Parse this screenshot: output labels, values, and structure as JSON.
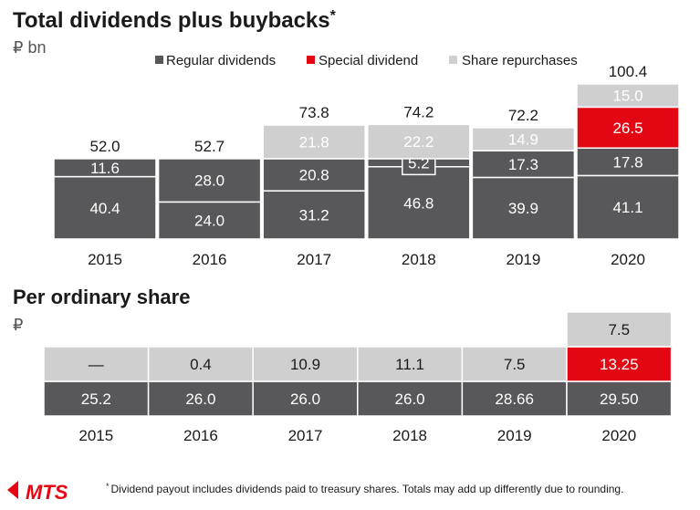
{
  "colors": {
    "regular": "#58585a",
    "special": "#e30613",
    "repurchase": "#cfcfcf",
    "regular_text": "#ffffff",
    "special_text": "#ffffff",
    "repurchase_text": "#ffffff",
    "per_share_light_text": "#1a1a1a",
    "brand": "#e30613"
  },
  "title": "Total dividends plus buybacks",
  "title_mark": "*",
  "unit": "₽ bn",
  "legend": {
    "regular": "Regular dividends",
    "special": "Special dividend",
    "repurchase": "Share repurchases"
  },
  "chart_data": [
    {
      "type": "bar",
      "title": "Total dividends plus buybacks*",
      "unit": "₽ bn",
      "categories": [
        "2015",
        "2016",
        "2017",
        "2018",
        "2019",
        "2020"
      ],
      "totals": [
        "52.0",
        "52.7",
        "73.8",
        "74.2",
        "72.2",
        "100.4"
      ],
      "segments": [
        [
          {
            "series": "regular",
            "value": 40.4,
            "label": "40.4"
          },
          {
            "series": "regular",
            "value": 11.6,
            "label": "11.6"
          }
        ],
        [
          {
            "series": "regular",
            "value": 24.0,
            "label": "24.0"
          },
          {
            "series": "regular",
            "value": 28.0,
            "label": "28.0"
          }
        ],
        [
          {
            "series": "regular",
            "value": 31.2,
            "label": "31.2"
          },
          {
            "series": "regular",
            "value": 20.8,
            "label": "20.8"
          },
          {
            "series": "repurchase",
            "value": 21.8,
            "label": "21.8"
          }
        ],
        [
          {
            "series": "regular",
            "value": 46.8,
            "label": "46.8"
          },
          {
            "series": "regular",
            "value": 5.2,
            "label": "5.2",
            "callout": true
          },
          {
            "series": "repurchase",
            "value": 22.2,
            "label": "22.2"
          }
        ],
        [
          {
            "series": "regular",
            "value": 39.9,
            "label": "39.9"
          },
          {
            "series": "regular",
            "value": 17.3,
            "label": "17.3"
          },
          {
            "series": "repurchase",
            "value": 14.9,
            "label": "14.9"
          }
        ],
        [
          {
            "series": "regular",
            "value": 41.1,
            "label": "41.1"
          },
          {
            "series": "regular",
            "value": 17.8,
            "label": "17.8"
          },
          {
            "series": "special",
            "value": 26.5,
            "label": "26.5"
          },
          {
            "series": "repurchase",
            "value": 15.0,
            "label": "15.0"
          }
        ]
      ],
      "ylim": [
        0,
        100.4
      ],
      "legend_position": "top-right"
    },
    {
      "type": "table",
      "title": "Per ordinary share",
      "unit": "₽",
      "categories": [
        "2015",
        "2016",
        "2017",
        "2018",
        "2019",
        "2020"
      ],
      "rows": [
        {
          "series": "regular",
          "values": [
            "25.2",
            "26.0",
            "26.0",
            "26.0",
            "28.66",
            "29.50"
          ]
        },
        {
          "series": "second",
          "values": [
            "—",
            "0.4",
            "10.9",
            "11.1",
            "7.5",
            "13.25"
          ],
          "highlight_index": 5
        },
        {
          "series": "repurchase",
          "values": [
            "",
            "",
            "",
            "",
            "",
            "7.5"
          ]
        }
      ]
    }
  ],
  "per_share": {
    "title": "Per ordinary share",
    "unit": "₽"
  },
  "footnote": {
    "mark": "*",
    "text": "Dividend payout includes dividends paid to treasury shares. Totals may add up differently due to rounding."
  },
  "logo": {
    "text": "MTS"
  }
}
